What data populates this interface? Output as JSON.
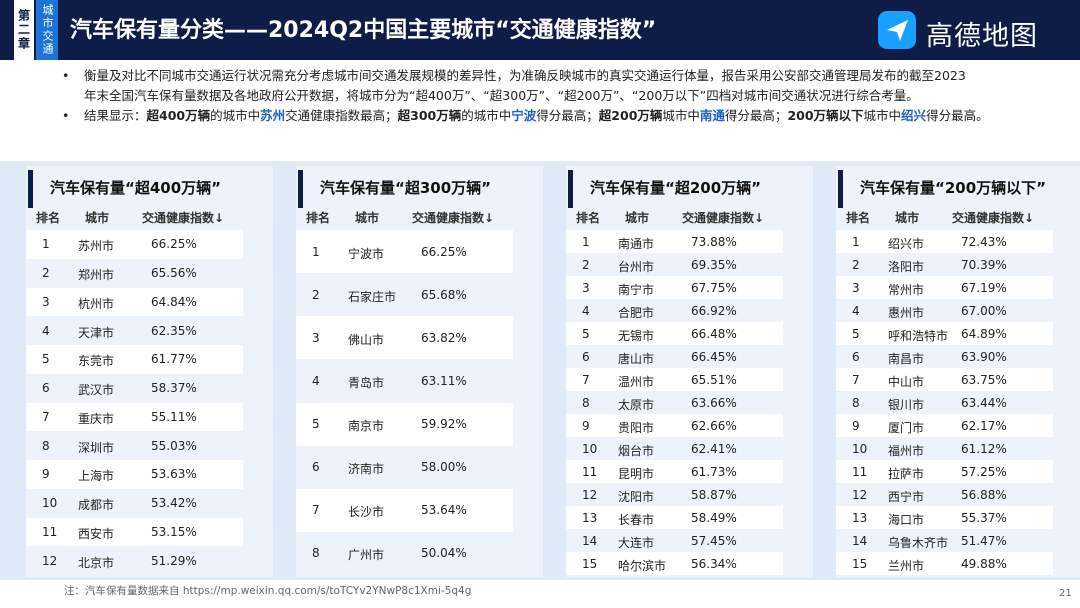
{
  "header": {
    "chapter_label": "第二章",
    "chapter_sub": "城市交通",
    "title": "汽车保有量分类——2024Q2中国主要城市“交通健康指数”",
    "logo_text": "高德地图"
  },
  "bullets": [
    {
      "dot": "•",
      "line1": "衡量及对比不同城市交通运行状况需充分考虑城市间交通发展规模的差异性，为准确反映城市的真实交通运行体量，报告采用公安部交通管理局发布的截至2023",
      "line2": "年末全国汽车保有量数据及各地政府公开数据，将城市分为“超400万”、“超300万”、“超200万”、“200万以下”四档对城市间交通状况进行综合考量。"
    },
    {
      "dot": "•",
      "p1": "结果显示：",
      "p2": "超400万辆",
      "p3": "的城市中",
      "p4": "苏州",
      "p5": "交通健康指数最高；",
      "p6": "超300万辆",
      "p7": "的城市中",
      "p8": "宁波",
      "p9": "得分最高；",
      "p10": "超200万辆",
      "p11": "城市中",
      "p12": "南通",
      "p13": "得分最高；",
      "p14": "200万辆以下",
      "p15": "城市中",
      "p16": "绍兴",
      "p17": "得分最高。"
    }
  ],
  "column_headers": {
    "rank": "排名",
    "city": "城市",
    "index": "交通健康指数↓"
  },
  "panels": [
    {
      "title": "汽车保有量“超400万辆”",
      "rows": [
        [
          "1",
          "苏州市",
          "66.25%"
        ],
        [
          "2",
          "郑州市",
          "65.56%"
        ],
        [
          "3",
          "杭州市",
          "64.84%"
        ],
        [
          "4",
          "天津市",
          "62.35%"
        ],
        [
          "5",
          "东莞市",
          "61.77%"
        ],
        [
          "6",
          "武汉市",
          "58.37%"
        ],
        [
          "7",
          "重庆市",
          "55.11%"
        ],
        [
          "8",
          "深圳市",
          "55.03%"
        ],
        [
          "9",
          "上海市",
          "53.63%"
        ],
        [
          "10",
          "成都市",
          "53.42%"
        ],
        [
          "11",
          "西安市",
          "53.15%"
        ],
        [
          "12",
          "北京市",
          "51.29%"
        ]
      ]
    },
    {
      "title": "汽车保有量“超300万辆”",
      "rows": [
        [
          "1",
          "宁波市",
          "66.25%"
        ],
        [
          "2",
          "石家庄市",
          "65.68%"
        ],
        [
          "3",
          "佛山市",
          "63.82%"
        ],
        [
          "4",
          "青岛市",
          "63.11%"
        ],
        [
          "5",
          "南京市",
          "59.92%"
        ],
        [
          "6",
          "济南市",
          "58.00%"
        ],
        [
          "7",
          "长沙市",
          "53.64%"
        ],
        [
          "8",
          "广州市",
          "50.04%"
        ]
      ]
    },
    {
      "title": "汽车保有量“超200万辆”",
      "rows": [
        [
          "1",
          "南通市",
          "73.88%"
        ],
        [
          "2",
          "台州市",
          "69.35%"
        ],
        [
          "3",
          "南宁市",
          "67.75%"
        ],
        [
          "4",
          "合肥市",
          "66.92%"
        ],
        [
          "5",
          "无锡市",
          "66.48%"
        ],
        [
          "6",
          "唐山市",
          "66.45%"
        ],
        [
          "7",
          "温州市",
          "65.51%"
        ],
        [
          "8",
          "太原市",
          "63.66%"
        ],
        [
          "9",
          "贵阳市",
          "62.66%"
        ],
        [
          "10",
          "烟台市",
          "62.41%"
        ],
        [
          "11",
          "昆明市",
          "61.73%"
        ],
        [
          "12",
          "沈阳市",
          "58.87%"
        ],
        [
          "13",
          "长春市",
          "58.49%"
        ],
        [
          "14",
          "大连市",
          "57.45%"
        ],
        [
          "15",
          "哈尔滨市",
          "56.34%"
        ]
      ]
    },
    {
      "title": "汽车保有量“200万辆以下”",
      "rows": [
        [
          "1",
          "绍兴市",
          "72.43%"
        ],
        [
          "2",
          "洛阳市",
          "70.39%"
        ],
        [
          "3",
          "常州市",
          "67.19%"
        ],
        [
          "4",
          "惠州市",
          "67.00%"
        ],
        [
          "5",
          "呼和浩特市",
          "64.89%"
        ],
        [
          "6",
          "南昌市",
          "63.90%"
        ],
        [
          "7",
          "中山市",
          "63.75%"
        ],
        [
          "8",
          "银川市",
          "63.44%"
        ],
        [
          "9",
          "厦门市",
          "62.17%"
        ],
        [
          "10",
          "福州市",
          "61.12%"
        ],
        [
          "11",
          "拉萨市",
          "57.25%"
        ],
        [
          "12",
          "西宁市",
          "56.88%"
        ],
        [
          "13",
          "海口市",
          "55.37%"
        ],
        [
          "14",
          "乌鲁木齐市",
          "51.47%"
        ],
        [
          "15",
          "兰州市",
          "49.88%"
        ]
      ]
    }
  ],
  "footnote": "注：汽车保有量数据来自 https://mp.weixin.qq.com/s/toTCYv2YNwP8c1Xmi-5q4g",
  "page_number": "21",
  "colors": {
    "header_bg": "#0e1d47",
    "accent": "#1d5fc9",
    "band": "#dfe9f7"
  }
}
